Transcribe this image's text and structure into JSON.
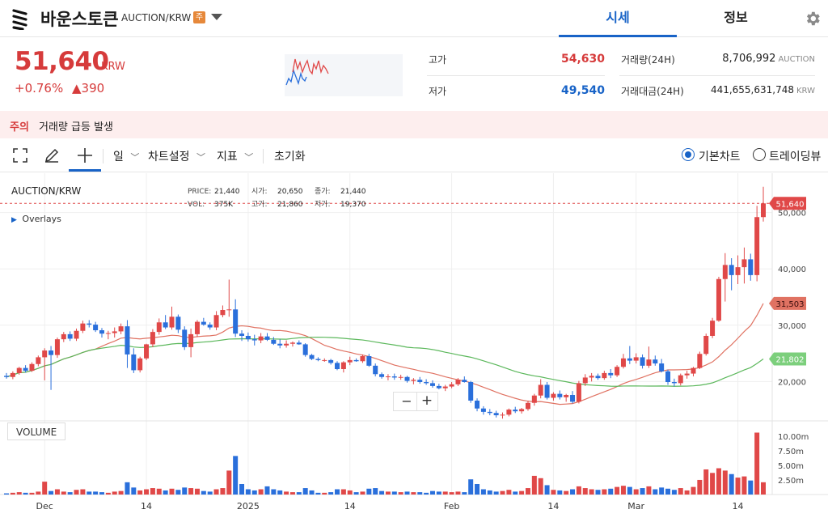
{
  "header": {
    "coin_name": "바운스토큰",
    "pair": "AUCTION/KRW",
    "warning_badge": "주",
    "tabs": [
      {
        "label": "시세",
        "active": true
      },
      {
        "label": "정보",
        "active": false
      }
    ]
  },
  "price": {
    "current": "51,640",
    "unit": "KRW",
    "change_pct": "+0.76%",
    "change_abs": "▲390",
    "color_up": "#d63b3b",
    "color_down": "#1863c7"
  },
  "stats": {
    "high_label": "고가",
    "high_value": "54,630",
    "low_label": "저가",
    "low_value": "49,540",
    "volume_label": "거래량(24H)",
    "volume_value": "8,706,992",
    "volume_unit": "AUCTION",
    "amount_label": "거래대금(24H)",
    "amount_value": "441,655,631,748",
    "amount_unit": "KRW"
  },
  "alert": {
    "tag": "주의",
    "message": "거래량 급등 발생"
  },
  "toolbar": {
    "period": "일",
    "settings": "차트설정",
    "indicators": "지표",
    "reset": "초기화",
    "basic_chart": "기본차트",
    "tradingview": "트레이딩뷰",
    "selected": "basic_chart"
  },
  "chart_meta": {
    "symbol": "AUCTION/KRW",
    "overlays": "Overlays",
    "legend": {
      "price_label": "PRICE:",
      "price": "21,440",
      "open_label": "시가:",
      "open": "20,650",
      "close_label": "종가:",
      "close": "21,440",
      "vol_label": "VOL:",
      "vol": "375K",
      "high_label": "고가:",
      "high": "21,860",
      "low_label": "저가:",
      "low": "19,370"
    },
    "volume_tag": "VOLUME",
    "zoom_out": "−",
    "zoom_in": "+",
    "badges": {
      "last": "51,640",
      "ma_short": "31,503",
      "ma_long": "21,802"
    },
    "colors": {
      "up": "#e04848",
      "down": "#2a6fdb",
      "ma_short": "#e07262",
      "ma_long": "#5cb85c",
      "last_line": "#e04848"
    }
  },
  "chart_data": {
    "type": "candlestick",
    "y_ticks": [
      "20,000",
      "30,000",
      "40,000",
      "50,000"
    ],
    "y_range": [
      13000,
      57000
    ],
    "volume_ticks": [
      "2.50m",
      "5.00m",
      "7.50m",
      "10.00m"
    ],
    "x_ticks": [
      "Dec",
      "14",
      "2025",
      "14",
      "Feb",
      "14",
      "Mar",
      "14"
    ],
    "candles": [
      [
        21000,
        21500,
        20500,
        20800,
        0.2
      ],
      [
        20800,
        21800,
        20400,
        21500,
        0.3
      ],
      [
        21500,
        22600,
        21200,
        22400,
        0.4
      ],
      [
        22400,
        22900,
        21600,
        21900,
        0.3
      ],
      [
        21900,
        23400,
        21700,
        23100,
        0.3
      ],
      [
        23100,
        24600,
        22700,
        24300,
        0.5
      ],
      [
        24300,
        25900,
        20200,
        25500,
        2.2
      ],
      [
        25500,
        26300,
        18500,
        24700,
        0.6
      ],
      [
        24700,
        27800,
        24200,
        27500,
        0.9
      ],
      [
        27500,
        28800,
        27000,
        28400,
        0.5
      ],
      [
        28400,
        28900,
        27200,
        27600,
        0.4
      ],
      [
        27600,
        29400,
        27200,
        29000,
        0.8
      ],
      [
        29000,
        30800,
        28600,
        30300,
        0.9
      ],
      [
        30300,
        30900,
        29600,
        30100,
        0.5
      ],
      [
        30100,
        30600,
        28800,
        29100,
        0.5
      ],
      [
        29100,
        29500,
        27800,
        28500,
        0.4
      ],
      [
        28500,
        29000,
        27500,
        28600,
        0.3
      ],
      [
        28600,
        29600,
        27800,
        28900,
        0.5
      ],
      [
        28900,
        30300,
        28400,
        29800,
        0.6
      ],
      [
        29800,
        30900,
        22400,
        24800,
        2.1
      ],
      [
        24800,
        25900,
        21500,
        22000,
        1.2
      ],
      [
        22000,
        24400,
        21600,
        24100,
        0.7
      ],
      [
        24100,
        26700,
        23800,
        26600,
        0.9
      ],
      [
        26600,
        29300,
        26100,
        28800,
        1.1
      ],
      [
        28800,
        31200,
        28300,
        30500,
        1.0
      ],
      [
        30500,
        31800,
        29300,
        29600,
        0.7
      ],
      [
        29600,
        33300,
        29200,
        31500,
        1.0
      ],
      [
        31500,
        31900,
        28600,
        29200,
        0.8
      ],
      [
        29200,
        29800,
        25600,
        26100,
        1.2
      ],
      [
        26100,
        29400,
        24300,
        28400,
        1.1
      ],
      [
        28400,
        30900,
        27900,
        30600,
        1.0
      ],
      [
        30600,
        31300,
        29900,
        30100,
        0.6
      ],
      [
        30100,
        30500,
        29200,
        29600,
        0.5
      ],
      [
        29600,
        32500,
        29100,
        31800,
        0.9
      ],
      [
        31800,
        33500,
        31400,
        32700,
        1.1
      ],
      [
        32700,
        38100,
        31500,
        32800,
        4.1
      ],
      [
        32800,
        34600,
        27900,
        28500,
        6.6
      ],
      [
        28500,
        29100,
        27200,
        28100,
        1.8
      ],
      [
        28100,
        28700,
        27100,
        27500,
        0.9
      ],
      [
        27500,
        28300,
        26400,
        27300,
        0.7
      ],
      [
        27300,
        28600,
        26800,
        28000,
        0.9
      ],
      [
        28000,
        28600,
        27200,
        27400,
        1.4
      ],
      [
        27400,
        27900,
        26500,
        26700,
        0.9
      ],
      [
        26700,
        27500,
        25900,
        26400,
        0.7
      ],
      [
        26400,
        27300,
        26000,
        26700,
        0.5
      ],
      [
        26700,
        27100,
        26200,
        26900,
        0.4
      ],
      [
        26900,
        27300,
        26500,
        26600,
        0.4
      ],
      [
        26600,
        26800,
        24400,
        24700,
        1.1
      ],
      [
        24700,
        24900,
        23800,
        24000,
        0.7
      ],
      [
        24000,
        24300,
        23600,
        23800,
        0.3
      ],
      [
        23800,
        24100,
        23500,
        23800,
        0.3
      ],
      [
        23800,
        24000,
        23000,
        23300,
        0.4
      ],
      [
        23300,
        23600,
        22000,
        22200,
        0.9
      ],
      [
        22200,
        23600,
        21600,
        23400,
        0.9
      ],
      [
        23400,
        24400,
        22900,
        23800,
        0.7
      ],
      [
        23800,
        24100,
        23500,
        23600,
        0.4
      ],
      [
        23600,
        24800,
        23300,
        24500,
        0.5
      ],
      [
        24500,
        24900,
        22600,
        22800,
        1.0
      ],
      [
        22800,
        23200,
        20900,
        21300,
        1.1
      ],
      [
        21300,
        21600,
        20500,
        20800,
        0.6
      ],
      [
        20800,
        21300,
        20200,
        20900,
        0.5
      ],
      [
        20900,
        21400,
        20300,
        20700,
        0.5
      ],
      [
        20700,
        21200,
        20300,
        20800,
        0.4
      ],
      [
        20800,
        21000,
        19800,
        20100,
        0.5
      ],
      [
        20100,
        20600,
        19500,
        20300,
        0.4
      ],
      [
        20300,
        20800,
        19600,
        19900,
        0.4
      ],
      [
        19900,
        20400,
        19400,
        19700,
        0.3
      ],
      [
        19700,
        20200,
        18900,
        19200,
        0.6
      ],
      [
        19200,
        19600,
        18600,
        18800,
        0.5
      ],
      [
        18800,
        19400,
        18300,
        19100,
        0.5
      ],
      [
        19100,
        19900,
        18800,
        19500,
        0.4
      ],
      [
        19500,
        20600,
        19200,
        20300,
        0.5
      ],
      [
        20300,
        20900,
        19800,
        19900,
        0.4
      ],
      [
        19900,
        20100,
        16200,
        16600,
        2.6
      ],
      [
        16600,
        17000,
        14700,
        15200,
        1.8
      ],
      [
        15200,
        15600,
        14100,
        14600,
        0.9
      ],
      [
        14600,
        15100,
        14000,
        14400,
        0.7
      ],
      [
        14400,
        14800,
        13600,
        14000,
        0.5
      ],
      [
        14000,
        14500,
        13400,
        14100,
        0.6
      ],
      [
        14100,
        15200,
        13800,
        15000,
        0.8
      ],
      [
        15000,
        15500,
        14400,
        14700,
        0.5
      ],
      [
        14700,
        15300,
        14300,
        15100,
        0.6
      ],
      [
        15100,
        16600,
        14800,
        16200,
        1.1
      ],
      [
        16200,
        17800,
        15700,
        17500,
        3.2
      ],
      [
        17500,
        20400,
        17000,
        19400,
        2.8
      ],
      [
        19400,
        19900,
        16800,
        17100,
        1.6
      ],
      [
        17100,
        18100,
        16600,
        17800,
        0.8
      ],
      [
        17800,
        18400,
        16800,
        17200,
        0.7
      ],
      [
        17200,
        17800,
        16400,
        17600,
        0.6
      ],
      [
        17600,
        18300,
        16100,
        16400,
        0.9
      ],
      [
        16400,
        20100,
        16100,
        19700,
        1.4
      ],
      [
        19700,
        21300,
        19200,
        20700,
        1.1
      ],
      [
        20700,
        21500,
        20000,
        21000,
        0.9
      ],
      [
        21000,
        21400,
        20300,
        20600,
        0.8
      ],
      [
        20600,
        21900,
        20300,
        21500,
        0.9
      ],
      [
        21500,
        22200,
        20600,
        21100,
        1.0
      ],
      [
        21100,
        22900,
        20800,
        22600,
        1.3
      ],
      [
        22600,
        24900,
        22300,
        24100,
        1.5
      ],
      [
        24100,
        26300,
        23100,
        23700,
        1.3
      ],
      [
        23700,
        25000,
        23200,
        24300,
        0.9
      ],
      [
        24300,
        24800,
        22300,
        22800,
        1.1
      ],
      [
        22800,
        26200,
        22400,
        23900,
        1.4
      ],
      [
        23900,
        24600,
        22800,
        23200,
        0.9
      ],
      [
        23200,
        24000,
        21600,
        21800,
        1.2
      ],
      [
        21800,
        22100,
        19400,
        19900,
        1.0
      ],
      [
        19900,
        20500,
        19100,
        19700,
        0.8
      ],
      [
        19700,
        21400,
        19300,
        21100,
        1.1
      ],
      [
        21100,
        21900,
        20500,
        21400,
        0.7
      ],
      [
        21400,
        22600,
        20900,
        22400,
        1.3
      ],
      [
        22400,
        25300,
        22200,
        24900,
        2.5
      ],
      [
        24900,
        28500,
        24600,
        28100,
        4.3
      ],
      [
        28100,
        31300,
        27700,
        30800,
        3.7
      ],
      [
        30800,
        38600,
        30600,
        38200,
        4.5
      ],
      [
        38200,
        42800,
        34200,
        40700,
        4.1
      ],
      [
        40700,
        41900,
        36200,
        38900,
        3.5
      ],
      [
        38900,
        42400,
        37300,
        40300,
        2.9
      ],
      [
        40300,
        43800,
        37400,
        41700,
        3.1
      ],
      [
        41700,
        42700,
        37900,
        38900,
        2.4
      ],
      [
        38900,
        51200,
        37800,
        49200,
        10.6
      ],
      [
        49200,
        54600,
        48400,
        51640,
        2.1
      ]
    ]
  }
}
